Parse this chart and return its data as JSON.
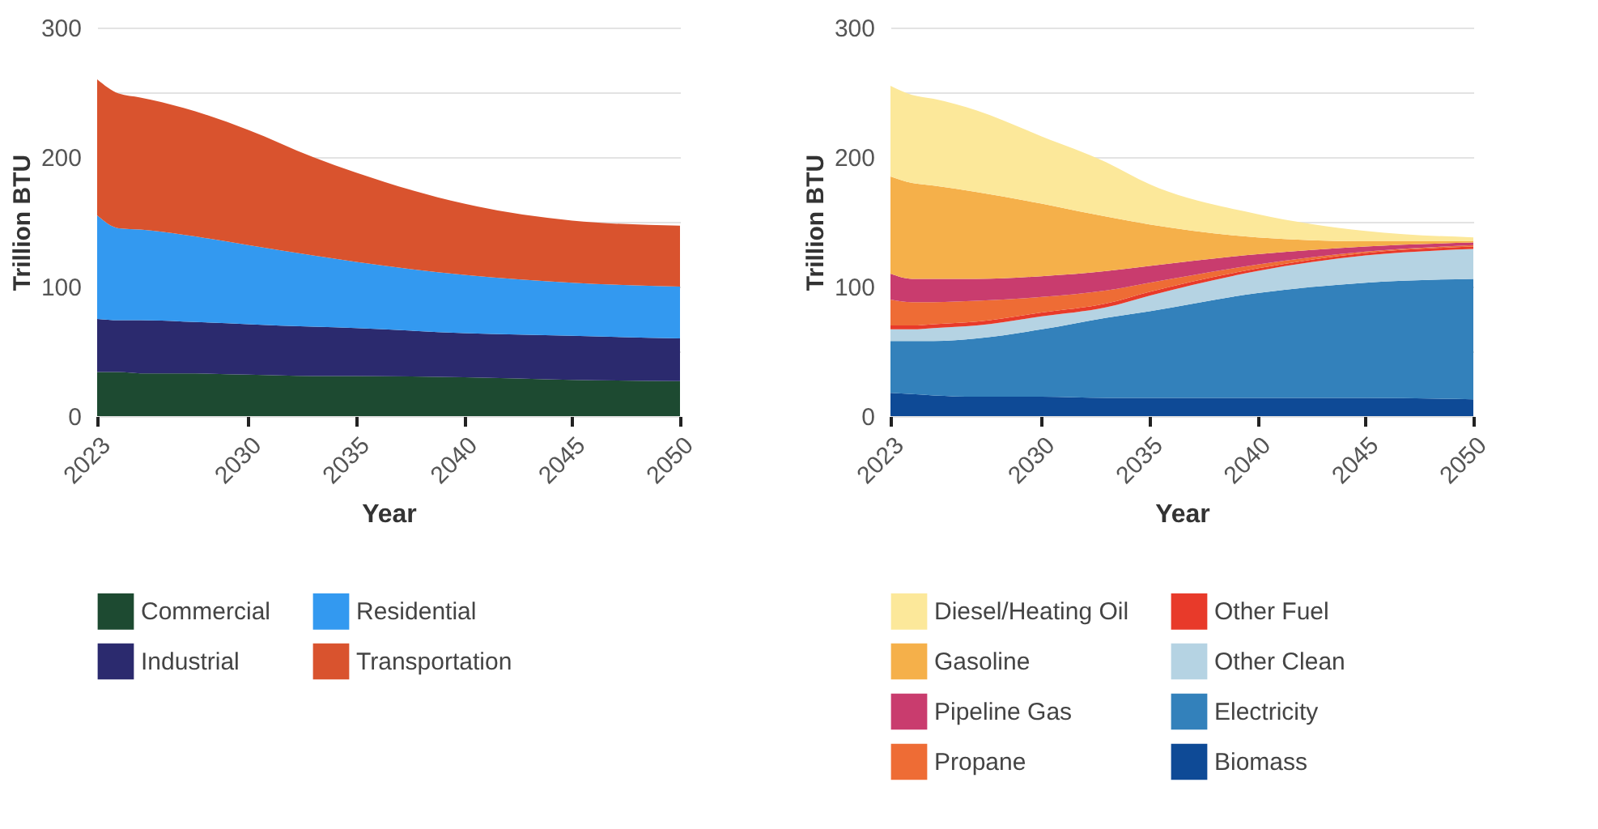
{
  "chart_data": [
    {
      "type": "area",
      "stacked": true,
      "xlabel": "Year",
      "ylabel": "Trillion BTU",
      "x": [
        2023,
        2024,
        2025,
        2027,
        2030,
        2033,
        2035,
        2040,
        2045,
        2050
      ],
      "xlim": [
        2023,
        2050
      ],
      "xticks": [
        2023,
        2030,
        2035,
        2040,
        2045,
        2050
      ],
      "ylim": [
        0,
        300
      ],
      "yticks": [
        0,
        {
          "value": 50,
          "label": null
        },
        100,
        {
          "value": 150,
          "label": null
        },
        200,
        {
          "value": 250,
          "label": null
        },
        300
      ],
      "grid": "y",
      "legend": "bottom",
      "series": [
        {
          "name": "Commercial",
          "color": "#1d4a31",
          "values": [
            34,
            34,
            33,
            33,
            32,
            31,
            31,
            30,
            28,
            27
          ]
        },
        {
          "name": "Industrial",
          "color": "#2b2a6e",
          "values": [
            41,
            40,
            41,
            40,
            39,
            38,
            37,
            34,
            34,
            33
          ]
        },
        {
          "name": "Residential",
          "color": "#3399f0",
          "values": [
            80,
            71,
            70,
            67,
            61,
            55,
            51,
            45,
            41,
            40
          ]
        },
        {
          "name": "Transportation",
          "color": "#d9532e",
          "values": [
            105,
            104,
            102,
            98,
            89,
            76,
            69,
            55,
            48,
            47
          ]
        }
      ]
    },
    {
      "type": "area",
      "stacked": true,
      "xlabel": "Year",
      "ylabel": "Trillion BTU",
      "x": [
        2023,
        2024,
        2025,
        2027,
        2030,
        2033,
        2035,
        2040,
        2045,
        2050
      ],
      "xlim": [
        2023,
        2050
      ],
      "xticks": [
        2023,
        2030,
        2035,
        2040,
        2045,
        2050
      ],
      "ylim": [
        0,
        300
      ],
      "yticks": [
        0,
        {
          "value": 50,
          "label": null
        },
        100,
        {
          "value": 150,
          "label": null
        },
        200,
        {
          "value": 250,
          "label": null
        },
        300
      ],
      "grid": "y",
      "legend": "bottom",
      "series": [
        {
          "name": "Biomass",
          "color": "#0e4a96",
          "values": [
            18,
            17,
            16,
            15,
            15,
            14,
            14,
            14,
            14,
            13
          ]
        },
        {
          "name": "Electricity",
          "color": "#3381bb",
          "values": [
            40,
            41,
            42,
            45,
            52,
            62,
            67,
            81,
            89,
            93
          ]
        },
        {
          "name": "Other Clean",
          "color": "#b5d3e3",
          "values": [
            9,
            9,
            10,
            10,
            10,
            8,
            12,
            17,
            21,
            23
          ]
        },
        {
          "name": "Other Fuel",
          "color": "#e83a2a",
          "values": [
            3,
            3,
            3,
            3,
            3,
            3,
            3,
            2,
            2,
            2
          ]
        },
        {
          "name": "Propane",
          "color": "#ee6c35",
          "values": [
            20,
            18,
            17,
            16,
            12,
            10,
            7,
            3,
            1,
            1
          ]
        },
        {
          "name": "Pipeline Gas",
          "color": "#c93c6e",
          "values": [
            20,
            18,
            18,
            17,
            16,
            15,
            13,
            8,
            4,
            2
          ]
        },
        {
          "name": "Gasoline",
          "color": "#f5b04a",
          "values": [
            75,
            74,
            72,
            67,
            56,
            42,
            32,
            13,
            4,
            1
          ]
        },
        {
          "name": "Diesel/Heating Oil",
          "color": "#fce89a",
          "values": [
            70,
            68,
            67,
            63,
            52,
            42,
            31,
            18,
            8,
            3
          ]
        }
      ]
    }
  ]
}
